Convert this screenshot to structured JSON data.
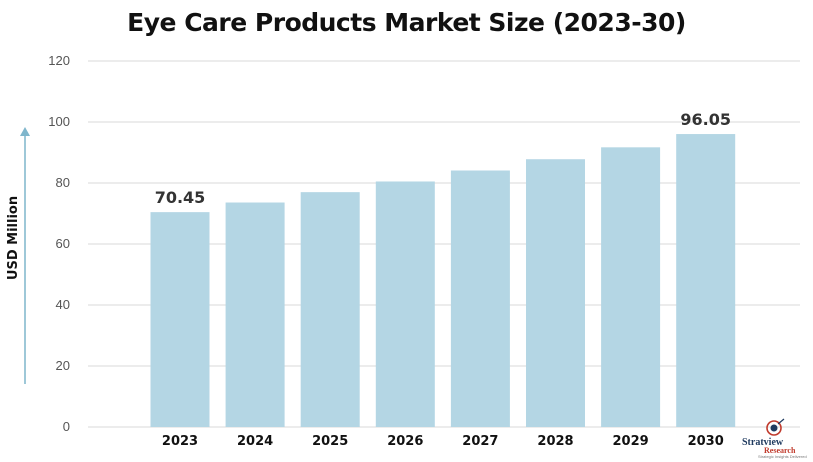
{
  "chart_data": {
    "type": "bar",
    "title": "Eye Care Products Market Size (2023-30)",
    "ylabel": "USD Million",
    "xlabel": "",
    "categories": [
      "2023",
      "2024",
      "2025",
      "2026",
      "2027",
      "2028",
      "2029",
      "2030"
    ],
    "values": [
      70.45,
      73.6,
      77.0,
      80.5,
      84.1,
      87.8,
      91.7,
      96.05
    ],
    "data_labels": [
      "70.45",
      "",
      "",
      "",
      "",
      "",
      "",
      "96.05"
    ],
    "ylim": [
      0,
      120
    ],
    "yticks": [
      "0",
      "20",
      "40",
      "60",
      "80",
      "100",
      "120"
    ],
    "grid": true,
    "colors": {
      "bar": "#b4d6e4",
      "grid": "#d8d8d8",
      "arrow": "#7fb6cc"
    }
  },
  "logo": {
    "name": "Stratview",
    "sub": "Research",
    "tagline": "Strategic Insights Delivered"
  }
}
